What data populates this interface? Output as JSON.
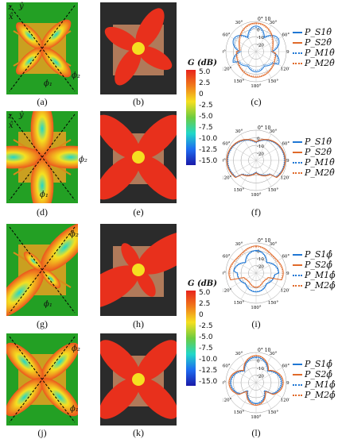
{
  "captions": [
    "(a)",
    "(b)",
    "(c)",
    "(d)",
    "(e)",
    "(f)",
    "(g)",
    "(h)",
    "(i)",
    "(j)",
    "(k)",
    "(l)"
  ],
  "axes": {
    "z": "z",
    "y": "ŷ",
    "x": "x̂",
    "phi1": "ϕ₁",
    "phi2": "ϕ₂"
  },
  "colorbar": {
    "title": "G (dB)",
    "ticks": [
      "5.0",
      "2.5",
      "0",
      "-2.5",
      "-5.0",
      "-7.5",
      "-10.0",
      "-12.5",
      "-15.0"
    ]
  },
  "polar_labels": {
    "r_ticks": [
      "10",
      "0",
      "-10",
      "-20"
    ],
    "angles": [
      "0°",
      "30°",
      "60°",
      "90°",
      "120°",
      "150°",
      "180°",
      "150°",
      "120°",
      "90°",
      "60°",
      "30°"
    ]
  },
  "legends": {
    "theta": [
      "P_S1θ̂",
      "P_S2θ̂",
      "P_M1θ̂",
      "P_M2θ̂"
    ],
    "phi": [
      "P_S1ϕ̂",
      "P_S2ϕ̂",
      "P_M1ϕ̂",
      "P_M2ϕ̂"
    ]
  },
  "colors": {
    "background_sim": "#23a024",
    "s1": "#1f77d4",
    "s2": "#e06a2a",
    "lobe_hot": "#e8241c",
    "lobe_mid": "#f5e020"
  }
}
